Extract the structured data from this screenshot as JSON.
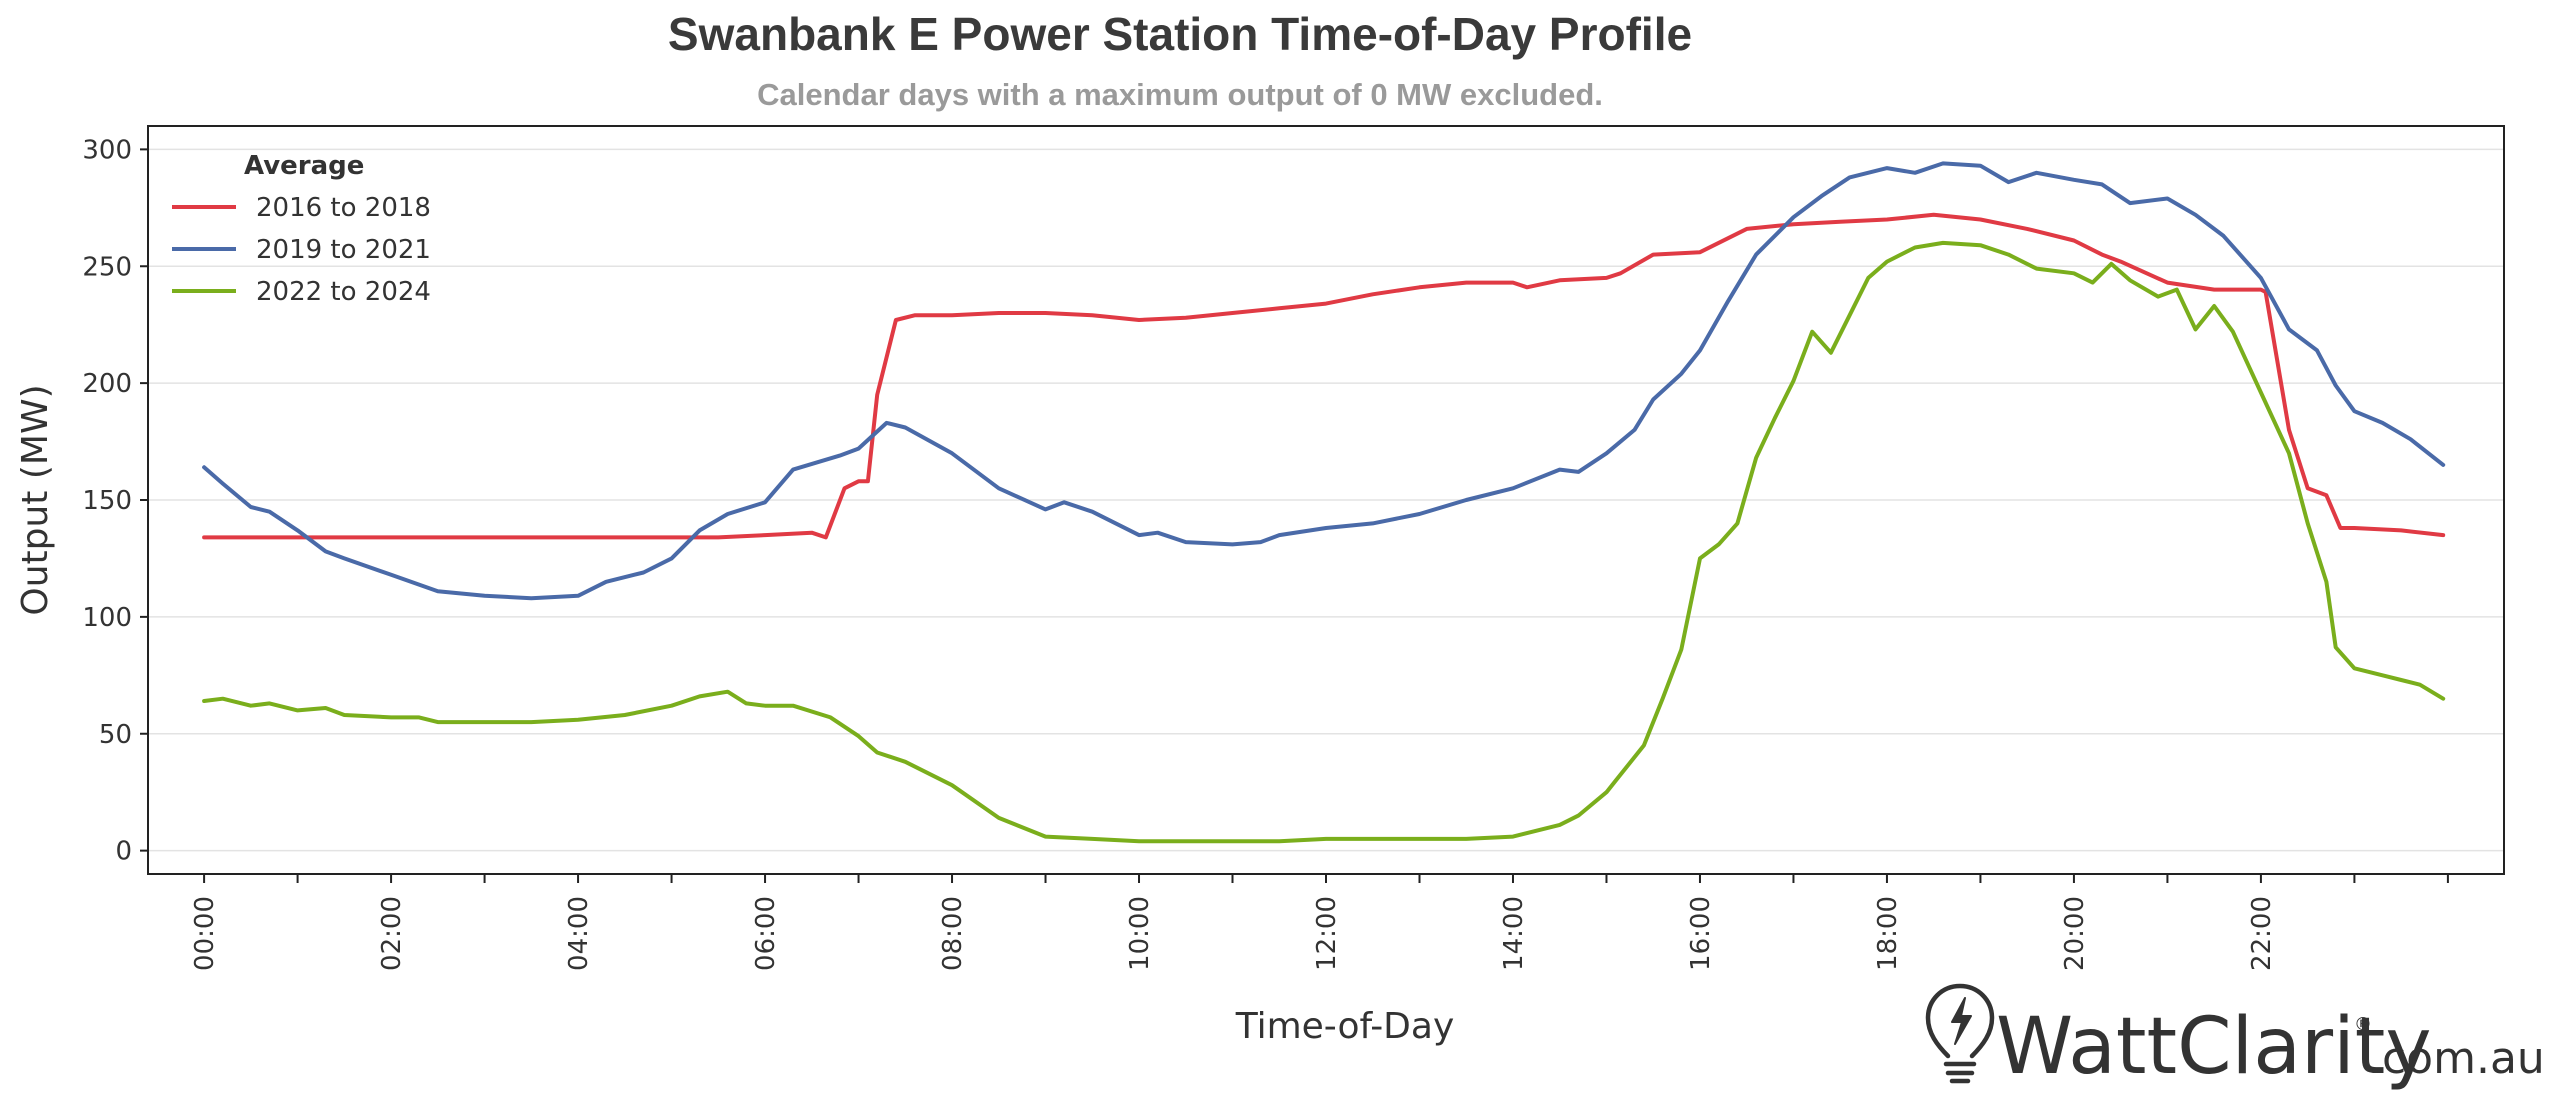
{
  "chart_data": {
    "type": "line",
    "title": "Swanbank E Power Station Time-of-Day  Profile",
    "subtitle": "Calendar days with a maximum output of 0 MW excluded.",
    "xlabel": "Time-of-Day",
    "ylabel": "Output (MW)",
    "xlim": [
      -0.6,
      24.6
    ],
    "ylim": [
      -10,
      310
    ],
    "x_ticks": [
      "00:00",
      "02:00",
      "04:00",
      "06:00",
      "08:00",
      "10:00",
      "12:00",
      "14:00",
      "16:00",
      "18:00",
      "20:00",
      "22:00"
    ],
    "y_ticks": [
      0,
      50,
      100,
      150,
      200,
      250,
      300
    ],
    "grid": "horizontal",
    "legend": {
      "title": "Average",
      "position": "top-left"
    },
    "series": [
      {
        "name": "2016 to 2018",
        "color": "#e03a44",
        "points": [
          [
            0,
            134
          ],
          [
            0.5,
            134
          ],
          [
            1,
            134
          ],
          [
            2,
            134
          ],
          [
            3,
            134
          ],
          [
            4,
            134
          ],
          [
            5,
            134
          ],
          [
            5.5,
            134
          ],
          [
            6,
            135
          ],
          [
            6.5,
            136
          ],
          [
            6.65,
            134
          ],
          [
            6.85,
            155
          ],
          [
            7.0,
            158
          ],
          [
            7.1,
            158
          ],
          [
            7.2,
            195
          ],
          [
            7.4,
            227
          ],
          [
            7.6,
            229
          ],
          [
            8,
            229
          ],
          [
            8.5,
            230
          ],
          [
            9,
            230
          ],
          [
            9.5,
            229
          ],
          [
            10,
            227
          ],
          [
            10.5,
            228
          ],
          [
            11,
            230
          ],
          [
            11.5,
            232
          ],
          [
            12,
            234
          ],
          [
            12.5,
            238
          ],
          [
            13,
            241
          ],
          [
            13.5,
            243
          ],
          [
            14,
            243
          ],
          [
            14.15,
            241
          ],
          [
            14.5,
            244
          ],
          [
            15,
            245
          ],
          [
            15.15,
            247
          ],
          [
            15.5,
            255
          ],
          [
            16,
            256
          ],
          [
            16.5,
            266
          ],
          [
            17,
            268
          ],
          [
            17.5,
            269
          ],
          [
            18,
            270
          ],
          [
            18.5,
            272
          ],
          [
            19,
            270
          ],
          [
            19.5,
            266
          ],
          [
            20,
            261
          ],
          [
            20.3,
            255
          ],
          [
            20.5,
            252
          ],
          [
            21,
            243
          ],
          [
            21.5,
            240
          ],
          [
            22,
            240
          ],
          [
            22.05,
            239
          ],
          [
            22.3,
            180
          ],
          [
            22.5,
            155
          ],
          [
            22.7,
            152
          ],
          [
            22.85,
            138
          ],
          [
            23,
            138
          ],
          [
            23.5,
            137
          ],
          [
            23.95,
            135
          ]
        ]
      },
      {
        "name": "2019 to 2021",
        "color": "#4a6aa8",
        "points": [
          [
            0,
            164
          ],
          [
            0.2,
            157
          ],
          [
            0.5,
            147
          ],
          [
            0.7,
            145
          ],
          [
            1,
            137
          ],
          [
            1.3,
            128
          ],
          [
            1.5,
            125
          ],
          [
            2,
            118
          ],
          [
            2.5,
            111
          ],
          [
            3,
            109
          ],
          [
            3.5,
            108
          ],
          [
            4,
            109
          ],
          [
            4.3,
            115
          ],
          [
            4.7,
            119
          ],
          [
            5,
            125
          ],
          [
            5.3,
            137
          ],
          [
            5.6,
            144
          ],
          [
            6,
            149
          ],
          [
            6.3,
            163
          ],
          [
            6.8,
            169
          ],
          [
            7,
            172
          ],
          [
            7.3,
            183
          ],
          [
            7.5,
            181
          ],
          [
            8,
            170
          ],
          [
            8.5,
            155
          ],
          [
            9,
            146
          ],
          [
            9.2,
            149
          ],
          [
            9.5,
            145
          ],
          [
            10,
            135
          ],
          [
            10.2,
            136
          ],
          [
            10.5,
            132
          ],
          [
            11,
            131
          ],
          [
            11.3,
            132
          ],
          [
            11.5,
            135
          ],
          [
            12,
            138
          ],
          [
            12.5,
            140
          ],
          [
            13,
            144
          ],
          [
            13.5,
            150
          ],
          [
            14,
            155
          ],
          [
            14.5,
            163
          ],
          [
            14.7,
            162
          ],
          [
            15,
            170
          ],
          [
            15.3,
            180
          ],
          [
            15.5,
            193
          ],
          [
            15.8,
            204
          ],
          [
            16,
            214
          ],
          [
            16.3,
            235
          ],
          [
            16.6,
            255
          ],
          [
            17,
            271
          ],
          [
            17.3,
            280
          ],
          [
            17.6,
            288
          ],
          [
            18,
            292
          ],
          [
            18.3,
            290
          ],
          [
            18.6,
            294
          ],
          [
            19,
            293
          ],
          [
            19.3,
            286
          ],
          [
            19.6,
            290
          ],
          [
            20,
            287
          ],
          [
            20.3,
            285
          ],
          [
            20.6,
            277
          ],
          [
            21,
            279
          ],
          [
            21.3,
            272
          ],
          [
            21.6,
            263
          ],
          [
            22,
            245
          ],
          [
            22.3,
            223
          ],
          [
            22.6,
            214
          ],
          [
            22.8,
            199
          ],
          [
            23,
            188
          ],
          [
            23.3,
            183
          ],
          [
            23.6,
            176
          ],
          [
            23.95,
            165
          ]
        ]
      },
      {
        "name": "2022 to 2024",
        "color": "#7aae1c",
        "points": [
          [
            0,
            64
          ],
          [
            0.2,
            65
          ],
          [
            0.5,
            62
          ],
          [
            0.7,
            63
          ],
          [
            1,
            60
          ],
          [
            1.3,
            61
          ],
          [
            1.5,
            58
          ],
          [
            2,
            57
          ],
          [
            2.3,
            57
          ],
          [
            2.5,
            55
          ],
          [
            3,
            55
          ],
          [
            3.5,
            55
          ],
          [
            4,
            56
          ],
          [
            4.5,
            58
          ],
          [
            5,
            62
          ],
          [
            5.3,
            66
          ],
          [
            5.6,
            68
          ],
          [
            5.8,
            63
          ],
          [
            6,
            62
          ],
          [
            6.3,
            62
          ],
          [
            6.7,
            57
          ],
          [
            7,
            49
          ],
          [
            7.2,
            42
          ],
          [
            7.5,
            38
          ],
          [
            8,
            28
          ],
          [
            8.5,
            14
          ],
          [
            9,
            6
          ],
          [
            9.5,
            5
          ],
          [
            10,
            4
          ],
          [
            10.5,
            4
          ],
          [
            11,
            4
          ],
          [
            11.5,
            4
          ],
          [
            12,
            5
          ],
          [
            12.5,
            5
          ],
          [
            13,
            5
          ],
          [
            13.5,
            5
          ],
          [
            14,
            6
          ],
          [
            14.5,
            11
          ],
          [
            14.7,
            15
          ],
          [
            15,
            25
          ],
          [
            15.1,
            30
          ],
          [
            15.4,
            45
          ],
          [
            15.6,
            65
          ],
          [
            15.8,
            86
          ],
          [
            16,
            125
          ],
          [
            16.2,
            131
          ],
          [
            16.4,
            140
          ],
          [
            16.6,
            168
          ],
          [
            16.8,
            185
          ],
          [
            17,
            201
          ],
          [
            17.2,
            222
          ],
          [
            17.4,
            213
          ],
          [
            17.6,
            229
          ],
          [
            17.8,
            245
          ],
          [
            18,
            252
          ],
          [
            18.3,
            258
          ],
          [
            18.6,
            260
          ],
          [
            19,
            259
          ],
          [
            19.3,
            255
          ],
          [
            19.6,
            249
          ],
          [
            20,
            247
          ],
          [
            20.2,
            243
          ],
          [
            20.4,
            251
          ],
          [
            20.6,
            244
          ],
          [
            20.9,
            237
          ],
          [
            21.1,
            240
          ],
          [
            21.3,
            223
          ],
          [
            21.5,
            233
          ],
          [
            21.7,
            222
          ],
          [
            22,
            196
          ],
          [
            22.3,
            170
          ],
          [
            22.5,
            140
          ],
          [
            22.7,
            115
          ],
          [
            22.8,
            87
          ],
          [
            23,
            78
          ],
          [
            23.3,
            75
          ],
          [
            23.5,
            73
          ],
          [
            23.7,
            71
          ],
          [
            23.95,
            65
          ]
        ]
      }
    ]
  },
  "logo": {
    "brand": "WattClarity",
    "suffix": ".com.au",
    "mark": "®",
    "icon": "lightbulb-bolt-icon"
  }
}
